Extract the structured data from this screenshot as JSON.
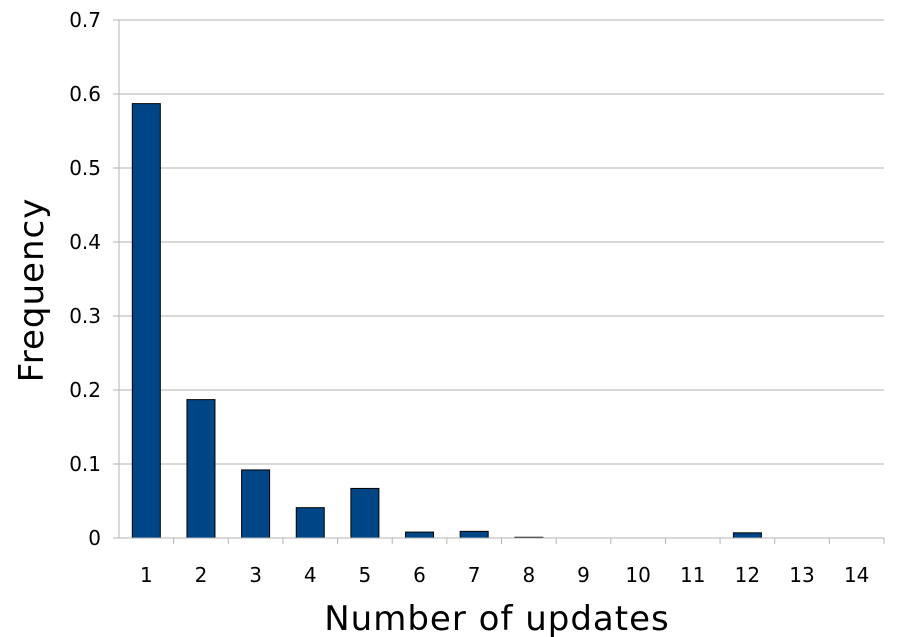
{
  "chart_data": {
    "type": "bar",
    "title": "",
    "xlabel": "Number of updates",
    "ylabel": "Frequency",
    "categories": [
      "1",
      "2",
      "3",
      "4",
      "5",
      "6",
      "7",
      "8",
      "9",
      "10",
      "11",
      "12",
      "13",
      "14"
    ],
    "values": [
      0.587,
      0.187,
      0.092,
      0.041,
      0.067,
      0.008,
      0.009,
      0.001,
      0,
      0,
      0,
      0.007,
      0,
      0
    ],
    "ylim": [
      0,
      0.7
    ],
    "yticks": [
      "0",
      "0.1",
      "0.2",
      "0.3",
      "0.4",
      "0.5",
      "0.6",
      "0.7"
    ],
    "grid": true,
    "colors": {
      "bar_fill": "#004586",
      "bar_stroke": "#000000",
      "grid": "#b3b3b3"
    }
  }
}
